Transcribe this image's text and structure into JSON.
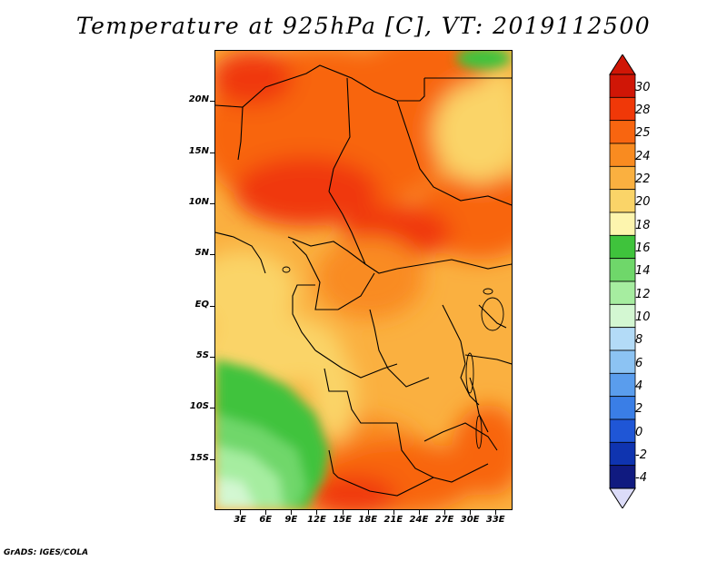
{
  "title": "Temperature at 925hPa [C], VT: 2019112500",
  "credit": "GrADS: IGES/COLA",
  "map": {
    "lon_range": [
      0,
      35
    ],
    "lat_range": [
      -20,
      25
    ],
    "lat_labels": [
      {
        "text": "20N",
        "lat": 20
      },
      {
        "text": "15N",
        "lat": 15
      },
      {
        "text": "10N",
        "lat": 10
      },
      {
        "text": "5N",
        "lat": 5
      },
      {
        "text": "EQ",
        "lat": 0
      },
      {
        "text": "5S",
        "lat": -5
      },
      {
        "text": "10S",
        "lat": -10
      },
      {
        "text": "15S",
        "lat": -15
      }
    ],
    "lon_labels": [
      {
        "text": "3E",
        "lon": 3
      },
      {
        "text": "6E",
        "lon": 6
      },
      {
        "text": "9E",
        "lon": 9
      },
      {
        "text": "12E",
        "lon": 12
      },
      {
        "text": "15E",
        "lon": 15
      },
      {
        "text": "18E",
        "lon": 18
      },
      {
        "text": "21E",
        "lon": 21
      },
      {
        "text": "24E",
        "lon": 24
      },
      {
        "text": "27E",
        "lon": 27
      },
      {
        "text": "30E",
        "lon": 30
      },
      {
        "text": "33E",
        "lon": 33
      }
    ]
  },
  "colorbar": {
    "labels": [
      "30",
      "28",
      "25",
      "24",
      "22",
      "20",
      "18",
      "16",
      "14",
      "12",
      "10",
      "8",
      "6",
      "4",
      "2",
      "0",
      "-2",
      "-4"
    ],
    "colors": [
      "#d01606",
      "#f03808",
      "#f86510",
      "#f98b20",
      "#fab040",
      "#fad468",
      "#fdf5ae",
      "#3fc33c",
      "#6fd76a",
      "#a6eda0",
      "#d3f7d2",
      "#b3dbf7",
      "#8cc3f3",
      "#5a9ded",
      "#3a7ee6",
      "#1f56d6",
      "#0f34b0",
      "#101a80"
    ],
    "top_color": "#d01606",
    "bottom_color": "#dcdcf8"
  }
}
